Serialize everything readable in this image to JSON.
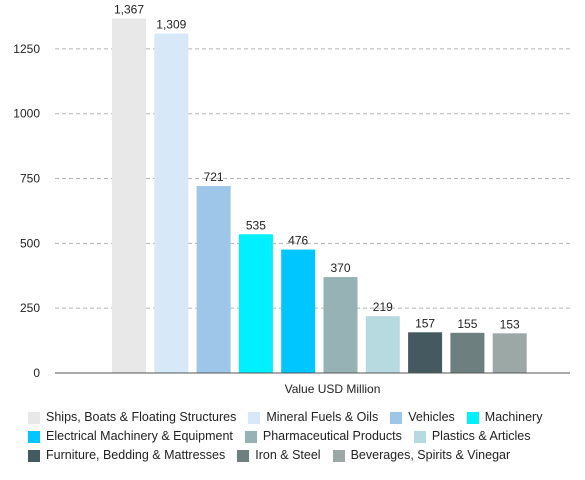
{
  "chart_data": {
    "type": "bar",
    "xlabel": "Value USD Million",
    "ylabel": "",
    "ylim": [
      0,
      1400
    ],
    "yticks": [
      0,
      250,
      500,
      750,
      1000,
      1250
    ],
    "grid": true,
    "legend_position": "bottom",
    "categories": [
      "Ships, Boats & Floating Structures",
      "Mineral Fuels & Oils",
      "Vehicles",
      "Machinery",
      "Electrical Machinery & Equipment",
      "Pharmaceutical Products",
      "Plastics & Articles",
      "Furniture, Bedding & Mattresses",
      "Iron & Steel",
      "Beverages, Spirits & Vinegar"
    ],
    "values": [
      1367,
      1309,
      721,
      535,
      476,
      370,
      219,
      157,
      155,
      153
    ],
    "value_labels": [
      "1,367",
      "1,309",
      "721",
      "535",
      "476",
      "370",
      "219",
      "157",
      "155",
      "153"
    ],
    "colors": [
      "#e8e8e8",
      "#d7e8f9",
      "#9dc6e8",
      "#00f0ff",
      "#00c6ff",
      "#97b2b5",
      "#b7d9e0",
      "#455a60",
      "#6e7f80",
      "#9ba8a6"
    ]
  }
}
